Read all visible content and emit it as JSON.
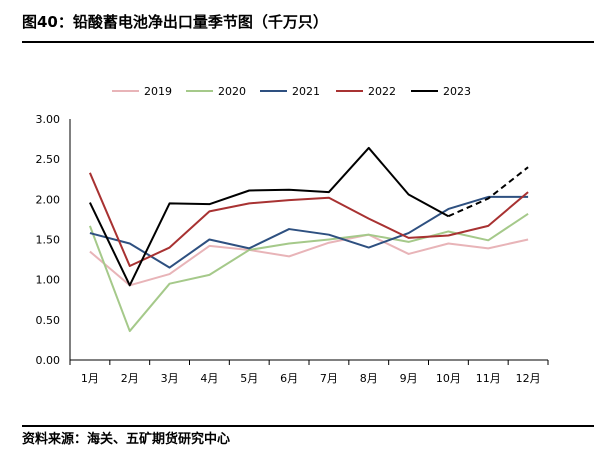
{
  "title": "图40：铅酸蓄电池净出口量季节图（千万只）",
  "source": "资料来源：海关、五矿期货研究中心",
  "chart_data": {
    "type": "line",
    "title": "图40：铅酸蓄电池净出口量季节图（千万只）",
    "xlabel": "",
    "ylabel": "",
    "ylim": [
      0,
      3
    ],
    "yticks": [
      "0.00",
      "0.50",
      "1.00",
      "1.50",
      "2.00",
      "2.50",
      "3.00"
    ],
    "categories": [
      "1月",
      "2月",
      "3月",
      "4月",
      "5月",
      "6月",
      "7月",
      "8月",
      "9月",
      "10月",
      "11月",
      "12月"
    ],
    "legend_position": "top",
    "series": [
      {
        "name": "2019",
        "color": "#e8b4b8",
        "values": [
          1.35,
          0.93,
          1.07,
          1.42,
          1.37,
          1.29,
          1.46,
          1.56,
          1.32,
          1.45,
          1.39,
          1.5
        ]
      },
      {
        "name": "2020",
        "color": "#a5c98a",
        "values": [
          1.67,
          0.36,
          0.95,
          1.06,
          1.37,
          1.45,
          1.5,
          1.56,
          1.47,
          1.6,
          1.49,
          1.82
        ]
      },
      {
        "name": "2021",
        "color": "#2e5080",
        "values": [
          1.58,
          1.45,
          1.15,
          1.5,
          1.39,
          1.63,
          1.56,
          1.4,
          1.58,
          1.88,
          2.03,
          2.03
        ]
      },
      {
        "name": "2022",
        "color": "#a83232",
        "values": [
          2.33,
          1.17,
          1.4,
          1.85,
          1.95,
          1.99,
          2.02,
          1.76,
          1.52,
          1.55,
          1.67,
          2.09
        ]
      },
      {
        "name": "2023",
        "color": "#000000",
        "values": [
          1.96,
          0.93,
          1.95,
          1.94,
          2.11,
          2.12,
          2.09,
          2.64,
          2.06,
          1.79,
          2.01,
          2.4
        ],
        "dashed_from_index": 9
      }
    ]
  }
}
